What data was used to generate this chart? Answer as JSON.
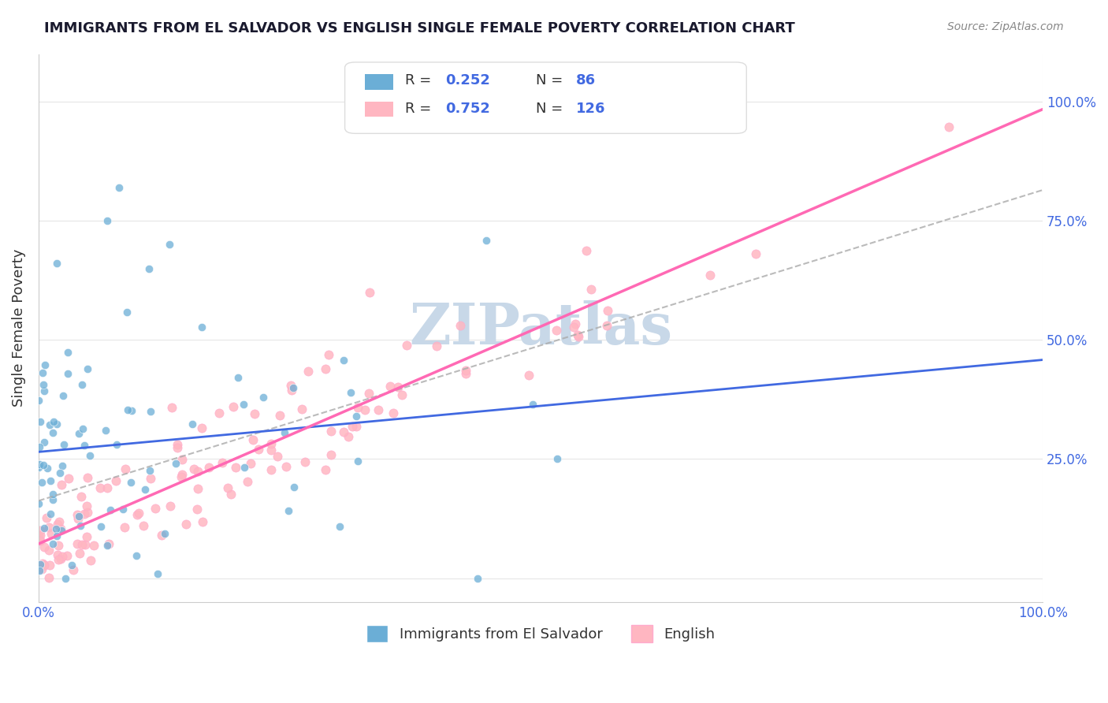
{
  "title": "IMMIGRANTS FROM EL SALVADOR VS ENGLISH SINGLE FEMALE POVERTY CORRELATION CHART",
  "source": "Source: ZipAtlas.com",
  "xlabel": "",
  "ylabel": "Single Female Poverty",
  "x_tick_labels": [
    "0.0%",
    "100.0%"
  ],
  "y_tick_labels_right": [
    "100.0%",
    "75.0%",
    "50.0%",
    "25.0%"
  ],
  "legend_bottom": [
    "Immigrants from El Salvador",
    "English"
  ],
  "legend_top": {
    "blue_r": "R = 0.252",
    "blue_n": "N = 86",
    "pink_r": "R = 0.752",
    "pink_n": "N = 126"
  },
  "blue_color": "#6baed6",
  "pink_color": "#ffb6c1",
  "blue_line_color": "#4169E1",
  "pink_line_color": "#FF69B4",
  "trend_line_color": "#c0c0c0",
  "watermark_color": "#c8d8e8",
  "title_color": "#1a1a2e",
  "source_color": "#888888",
  "label_color": "#4169E1",
  "background_color": "#ffffff",
  "grid_color": "#e0e0e0",
  "seed": 42,
  "blue_N": 86,
  "pink_N": 126,
  "blue_R": 0.252,
  "pink_R": 0.752
}
